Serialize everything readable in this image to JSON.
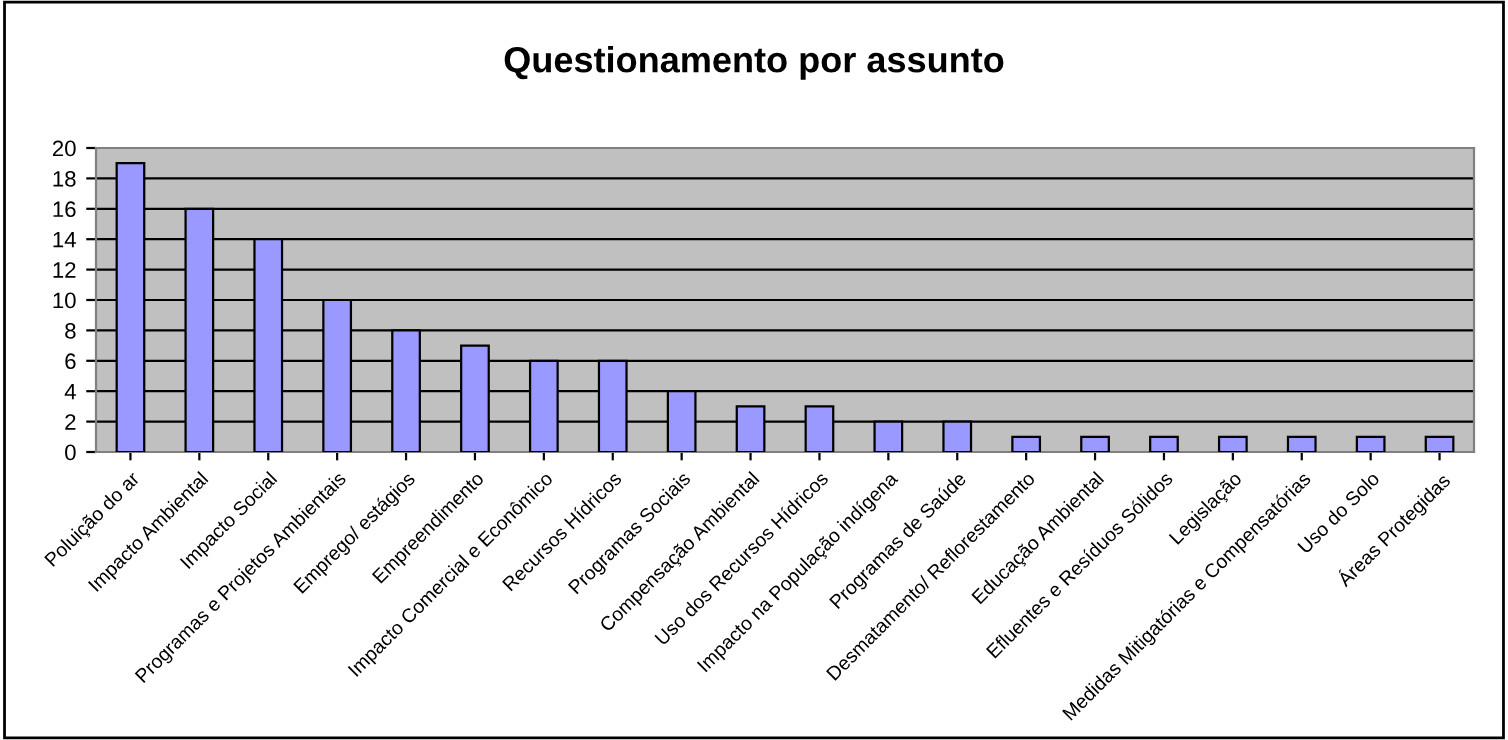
{
  "chart_data": {
    "type": "bar",
    "title": "Questionamento por assunto",
    "categories": [
      "Poluição do ar",
      "Impacto Ambiental",
      "Impacto Social",
      "Programas e Projetos Ambientais",
      "Emprego/ estágios",
      "Empreendimento",
      "Impacto Comercial e Econômico",
      "Recursos Hídricos",
      "Programas Sociais",
      "Compensação Ambiental",
      "Uso dos Recursos Hídricos",
      "Impacto na População indígena",
      "Programas de Saúde",
      "Desmatamento/ Reflorestamento",
      "Educação Ambiental",
      "Efluentes e Resíduos Sólidos",
      "Legislação",
      "Medidas Mitigatórias e Compensatórias",
      "Uso do Solo",
      "Áreas Protegidas"
    ],
    "values": [
      19,
      16,
      14,
      10,
      8,
      7,
      6,
      6,
      4,
      3,
      3,
      2,
      2,
      1,
      1,
      1,
      1,
      1,
      1,
      1
    ],
    "color": "#9999ff",
    "ylim": [
      0,
      20
    ],
    "yticks": [
      0,
      2,
      4,
      6,
      8,
      10,
      12,
      14,
      16,
      18,
      20
    ],
    "grid": "y",
    "legend": false
  }
}
